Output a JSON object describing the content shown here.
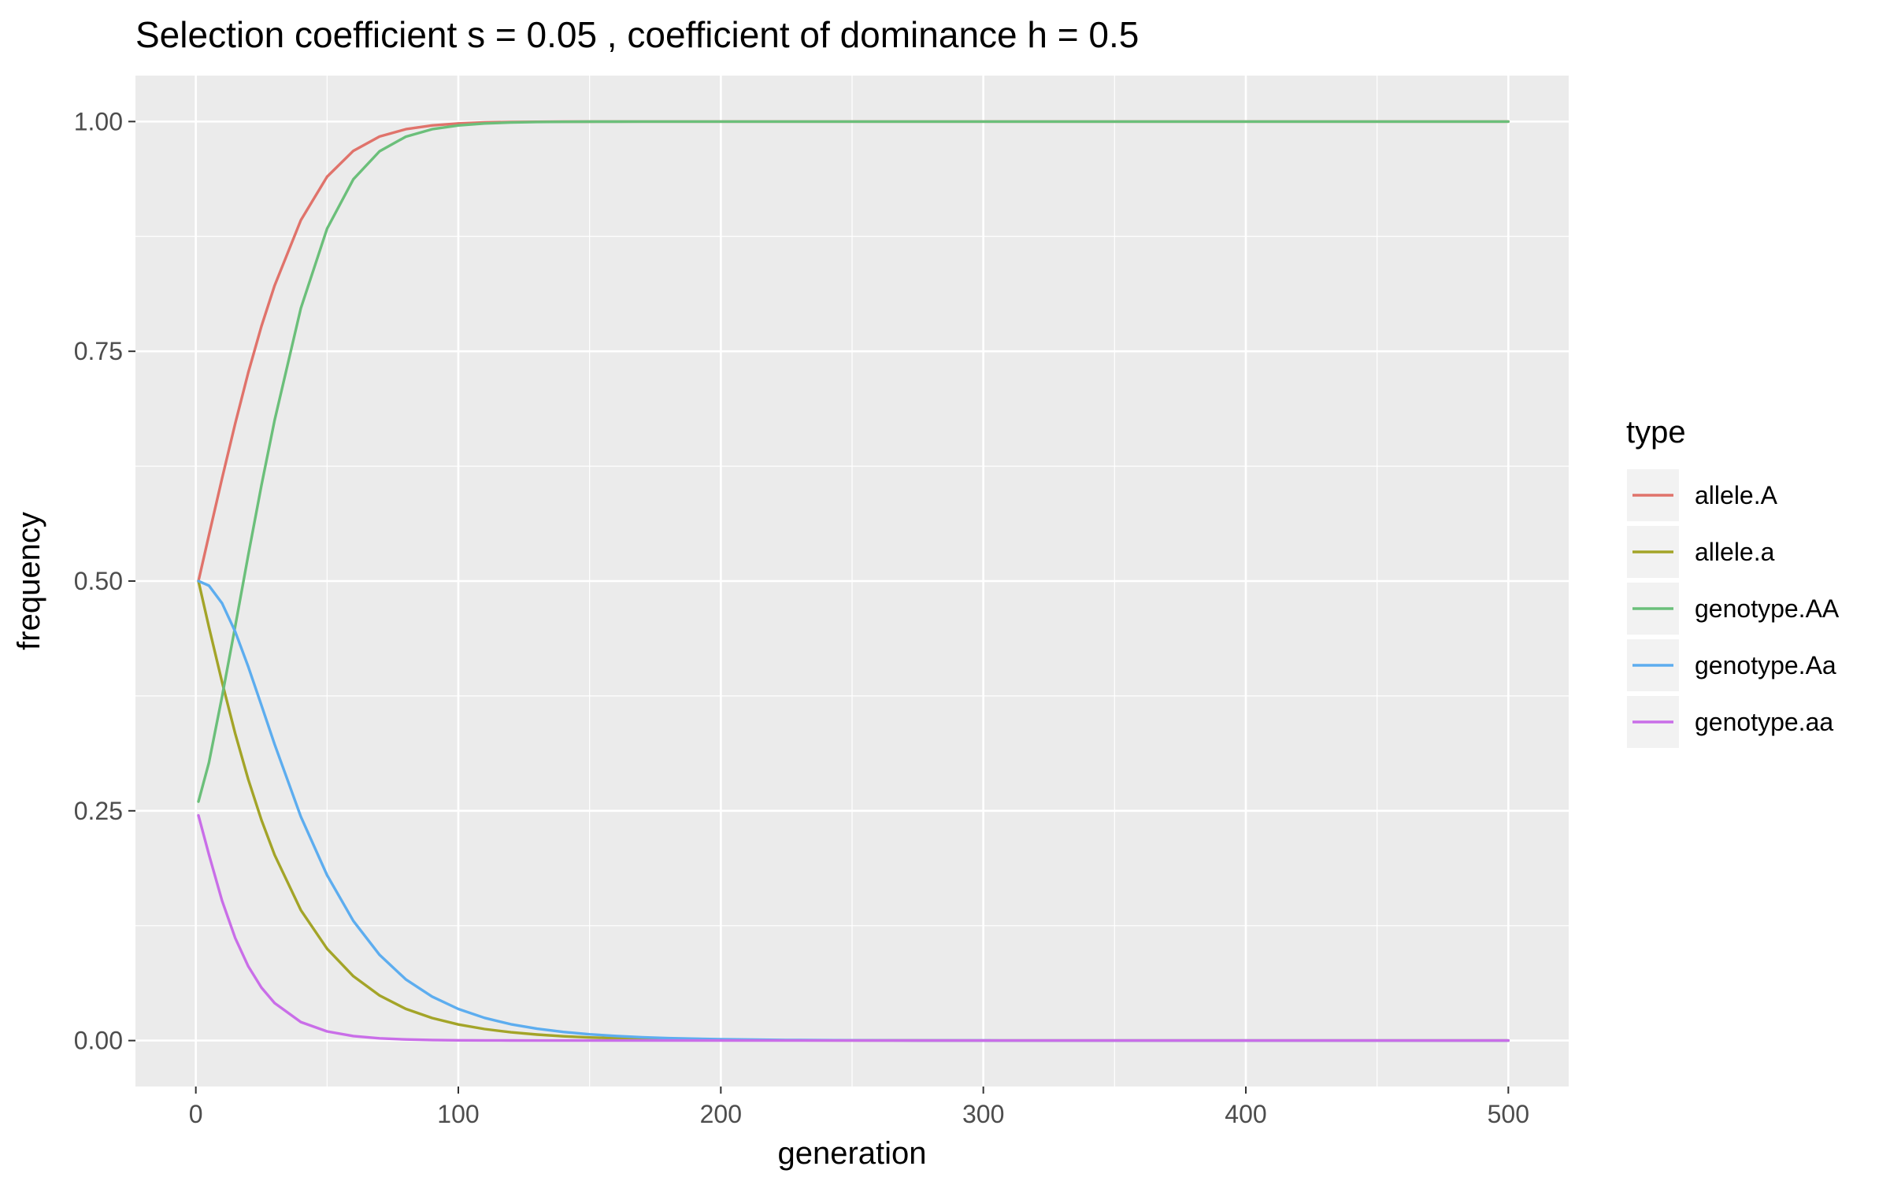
{
  "chart_data": {
    "type": "line",
    "title": "Selection coefficient s = 0.05 , coefficient of dominance h = 0.5",
    "xlabel": "generation",
    "ylabel": "frequency",
    "xlim": [
      -23,
      523
    ],
    "ylim": [
      -0.05,
      1.05
    ],
    "xticks": [
      0,
      100,
      200,
      300,
      400,
      500
    ],
    "xtick_labels": [
      "0",
      "100",
      "200",
      "300",
      "400",
      "500"
    ],
    "xminor": [
      50,
      150,
      250,
      350,
      450
    ],
    "yticks": [
      0,
      0.25,
      0.5,
      0.75,
      1.0
    ],
    "ytick_labels": [
      "0.00",
      "0.25",
      "0.50",
      "0.75",
      "1.00"
    ],
    "yminor": [
      0.125,
      0.375,
      0.625,
      0.875
    ],
    "grid": true,
    "legend_title": "type",
    "legend_position": "right",
    "x": [
      1,
      5,
      10,
      15,
      20,
      25,
      30,
      40,
      50,
      60,
      70,
      80,
      90,
      100,
      110,
      120,
      130,
      140,
      150,
      160,
      170,
      180,
      200,
      225,
      250,
      275,
      300,
      350,
      400,
      450,
      500
    ],
    "series": [
      {
        "name": "allele.A",
        "color": "#E0736B",
        "values": [
          0.5,
          0.5499,
          0.6118,
          0.6714,
          0.727,
          0.7773,
          0.8215,
          0.8926,
          0.9399,
          0.9681,
          0.9837,
          0.9917,
          0.9958,
          0.9979,
          0.999,
          0.9995,
          0.9997,
          0.9999,
          0.9999,
          1.0,
          1.0,
          1.0,
          1.0,
          1.0,
          1.0,
          1.0,
          1.0,
          1.0,
          1.0,
          1.0,
          1.0
        ]
      },
      {
        "name": "allele.a",
        "color": "#A3A428",
        "values": [
          0.5,
          0.45,
          0.39,
          0.334,
          0.284,
          0.24,
          0.202,
          0.142,
          0.1,
          0.07,
          0.049,
          0.0345,
          0.0245,
          0.0175,
          0.0125,
          0.009,
          0.0065,
          0.0047,
          0.0034,
          0.0025,
          0.0018,
          0.0013,
          0.0007,
          0.0004,
          0.0002,
          0.0001,
          0.0,
          0.0,
          0.0,
          0.0,
          0.0
        ]
      },
      {
        "name": "genotype.AA",
        "color": "#6BBF7A",
        "values": [
          0.26,
          0.3024,
          0.3743,
          0.4508,
          0.5285,
          0.6042,
          0.6749,
          0.7968,
          0.8834,
          0.9372,
          0.9677,
          0.9835,
          0.9917,
          0.9958,
          0.9979,
          0.9989,
          0.9995,
          0.9997,
          0.9999,
          0.9999,
          1.0,
          1.0,
          1.0,
          1.0,
          1.0,
          1.0,
          1.0,
          1.0,
          1.0,
          1.0,
          1.0
        ]
      },
      {
        "name": "genotype.Aa",
        "color": "#5DADEF",
        "values": [
          0.5,
          0.495,
          0.4758,
          0.4449,
          0.4067,
          0.3648,
          0.3224,
          0.2437,
          0.18,
          0.1302,
          0.0932,
          0.0666,
          0.0478,
          0.0344,
          0.0247,
          0.0178,
          0.0129,
          0.0094,
          0.0068,
          0.005,
          0.0036,
          0.0026,
          0.0014,
          0.0006,
          0.0003,
          0.0001,
          0.0001,
          0.0,
          0.0,
          0.0,
          0.0
        ]
      },
      {
        "name": "genotype.aa",
        "color": "#C96EE8",
        "values": [
          0.245,
          0.2025,
          0.1521,
          0.1116,
          0.0807,
          0.0576,
          0.0408,
          0.0202,
          0.01,
          0.0049,
          0.0024,
          0.0012,
          0.0006,
          0.0003,
          0.0002,
          0.0001,
          0.0,
          0.0,
          0.0,
          0.0,
          0.0,
          0.0,
          0.0,
          0.0,
          0.0,
          0.0,
          0.0,
          0.0,
          0.0,
          0.0,
          0.0
        ]
      }
    ]
  }
}
